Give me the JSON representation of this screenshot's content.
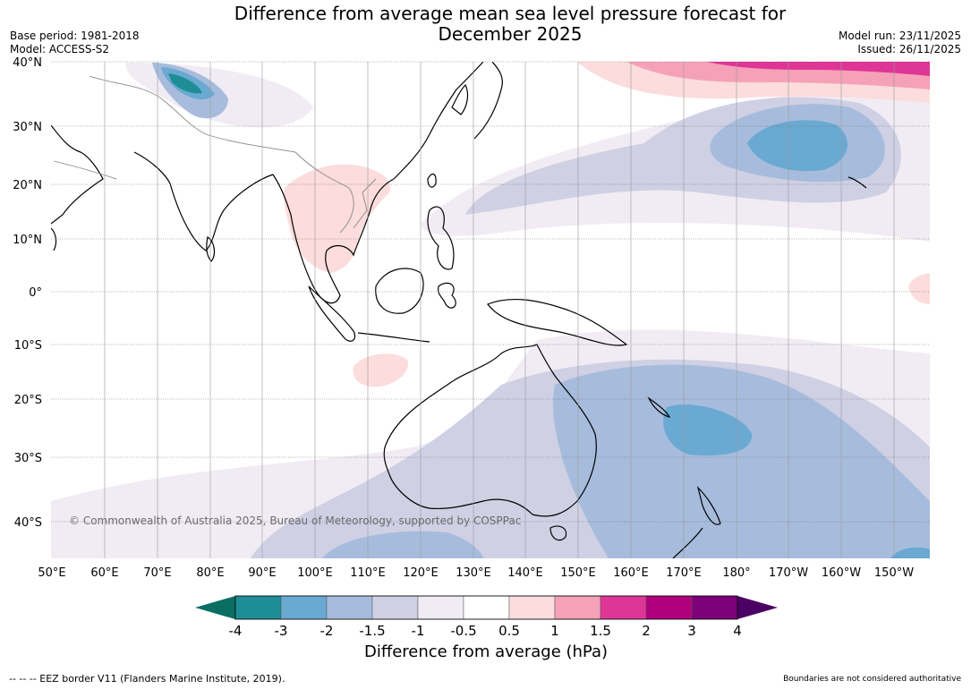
{
  "header": {
    "title_line1": "Difference from average mean sea level pressure forecast for",
    "title_line2": "December 2025",
    "base_period": "Base period: 1981-2018",
    "model": "Model: ACCESS-S2",
    "model_run": "Model run: 23/11/2025",
    "issued": "Issued: 26/11/2025"
  },
  "map": {
    "lat_labels": [
      "40°N",
      "30°N",
      "20°N",
      "10°N",
      "0°",
      "10°S",
      "20°S",
      "30°S",
      "40°S"
    ],
    "lon_labels": [
      "50°E",
      "60°E",
      "70°E",
      "80°E",
      "90°E",
      "100°E",
      "110°E",
      "120°E",
      "130°E",
      "140°E",
      "150°E",
      "160°E",
      "170°E",
      "180°",
      "170°W",
      "160°W",
      "150°W"
    ],
    "copyright": "© Commonwealth of Australia 2025, Bureau of Meteorology, supported by COSPPac"
  },
  "colorbar": {
    "ticks": [
      "-4",
      "-3",
      "-2",
      "-1.5",
      "-1",
      "-0.5",
      "0.5",
      "1",
      "1.5",
      "2",
      "3",
      "4"
    ],
    "colors": [
      "#1e8e96",
      "#6aa9d2",
      "#a7bcdc",
      "#cfd0e4",
      "#f1ecf4",
      "#ffffff",
      "#fcdcdc",
      "#f5a1b8",
      "#df3597",
      "#b0007c",
      "#7c0078"
    ],
    "low_extend_color": "#0b6e63",
    "high_extend_color": "#4b0064",
    "title": "Difference from average (hPa)"
  },
  "footer": {
    "eez": "--  --  -- EEZ border V11 (Flanders Marine Institute, 2019).",
    "disclaimer": "Boundaries are not considered authoritative"
  }
}
